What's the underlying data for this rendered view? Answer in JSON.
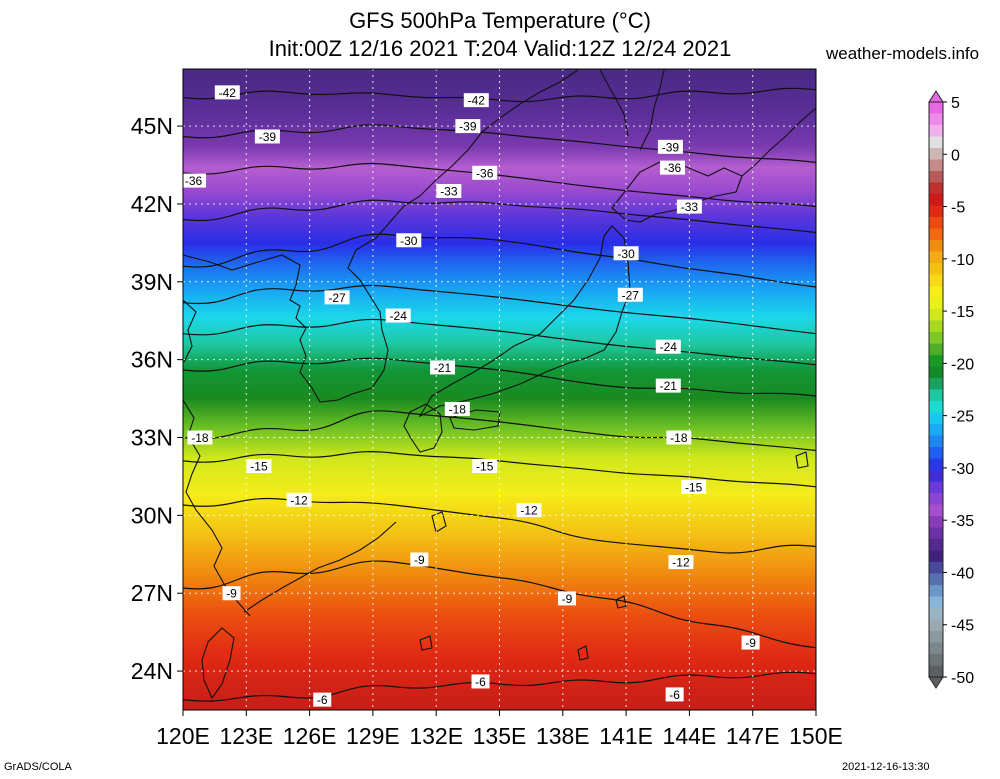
{
  "header": {
    "title_line1": "GFS 500hPa Temperature (°C)",
    "title_line2": "Init:00Z 12/16 2021 T:204 Valid:12Z 12/24 2021",
    "site": "weather-models.info"
  },
  "footer": {
    "left": "GrADS/COLA",
    "right": "2021-12-16-13:30"
  },
  "map": {
    "lon_range": [
      120,
      150
    ],
    "lat_range": [
      22.5,
      47.2
    ],
    "lon_labels": [
      "120E",
      "123E",
      "126E",
      "129E",
      "132E",
      "135E",
      "138E",
      "141E",
      "144E",
      "147E",
      "150E"
    ],
    "lon_values": [
      120,
      123,
      126,
      129,
      132,
      135,
      138,
      141,
      144,
      147,
      150
    ],
    "lat_labels": [
      "45N",
      "42N",
      "39N",
      "36N",
      "33N",
      "30N",
      "27N",
      "24N"
    ],
    "lat_values": [
      45,
      42,
      39,
      36,
      33,
      30,
      27,
      24
    ],
    "field_color_stops": [
      {
        "lat": 47.0,
        "color": "#4b2a86"
      },
      {
        "lat": 45.5,
        "color": "#5a2e98"
      },
      {
        "lat": 44.2,
        "color": "#7a3ab0"
      },
      {
        "lat": 43.4,
        "color": "#b55ed0"
      },
      {
        "lat": 42.5,
        "color": "#9a4ad0"
      },
      {
        "lat": 41.5,
        "color": "#5a36d8"
      },
      {
        "lat": 40.5,
        "color": "#2a2ee8"
      },
      {
        "lat": 39.6,
        "color": "#1e6ef0"
      },
      {
        "lat": 38.6,
        "color": "#18aaf4"
      },
      {
        "lat": 37.6,
        "color": "#1cd8e8"
      },
      {
        "lat": 36.6,
        "color": "#1ec8a0"
      },
      {
        "lat": 35.6,
        "color": "#129638"
      },
      {
        "lat": 34.5,
        "color": "#1a8a20"
      },
      {
        "lat": 33.4,
        "color": "#6cc024"
      },
      {
        "lat": 32.2,
        "color": "#d0e81c"
      },
      {
        "lat": 30.8,
        "color": "#f5ec18"
      },
      {
        "lat": 29.3,
        "color": "#f4c214"
      },
      {
        "lat": 27.8,
        "color": "#f08c10"
      },
      {
        "lat": 26.2,
        "color": "#ec5010"
      },
      {
        "lat": 24.6,
        "color": "#e02a14"
      },
      {
        "lat": 22.6,
        "color": "#c81e18"
      }
    ],
    "contours": [
      {
        "label": "-42",
        "lats": [
          46.1,
          46.3,
          46.2,
          46.0,
          46.1,
          46.3,
          46.4
        ]
      },
      {
        "label": "-39",
        "lats": [
          44.6,
          44.8,
          45.0,
          44.7,
          44.3,
          43.9,
          43.6
        ]
      },
      {
        "label": "-36",
        "lats": [
          43.2,
          43.4,
          43.5,
          43.1,
          42.6,
          42.2,
          41.9
        ]
      },
      {
        "label": "-33",
        "lats": [
          41.4,
          41.8,
          42.1,
          42.0,
          41.7,
          41.3,
          40.9
        ]
      },
      {
        "label": "-30",
        "lats": [
          39.6,
          40.2,
          40.8,
          40.6,
          40.0,
          39.4,
          38.8
        ]
      },
      {
        "label": "-27",
        "lats": [
          38.2,
          38.7,
          38.8,
          38.4,
          37.9,
          37.5,
          37.0
        ]
      },
      {
        "label": "-24",
        "lats": [
          37.0,
          37.3,
          37.5,
          37.1,
          36.6,
          36.2,
          35.8
        ]
      },
      {
        "label": "-21",
        "lats": [
          35.6,
          35.9,
          36.0,
          35.6,
          35.0,
          34.8,
          34.6
        ]
      },
      {
        "label": "-18",
        "lats": [
          33.0,
          33.3,
          34.0,
          33.6,
          33.1,
          32.9,
          32.5
        ]
      },
      {
        "label": "-15",
        "lats": [
          32.1,
          32.3,
          32.4,
          32.1,
          31.7,
          31.4,
          31.1
        ]
      },
      {
        "label": "-12",
        "lats": [
          30.4,
          30.6,
          30.4,
          29.9,
          29.0,
          28.6,
          28.8
        ]
      },
      {
        "label": "-9",
        "lats": [
          27.2,
          27.8,
          28.2,
          27.6,
          26.8,
          25.8,
          24.9
        ]
      },
      {
        "label": "-6",
        "lats": [
          22.9,
          23.0,
          23.4,
          23.5,
          23.6,
          23.8,
          23.9
        ]
      }
    ],
    "contour_labels": [
      {
        "text": "-42",
        "lon": 122.1,
        "lat": 46.3
      },
      {
        "text": "-42",
        "lon": 133.9,
        "lat": 46.0
      },
      {
        "text": "-39",
        "lon": 124.0,
        "lat": 44.6
      },
      {
        "text": "-39",
        "lon": 133.5,
        "lat": 45.0
      },
      {
        "text": "-39",
        "lon": 143.1,
        "lat": 44.2
      },
      {
        "text": "-36",
        "lon": 120.5,
        "lat": 42.9
      },
      {
        "text": "-36",
        "lon": 134.3,
        "lat": 43.2
      },
      {
        "text": "-36",
        "lon": 143.2,
        "lat": 43.4
      },
      {
        "text": "-33",
        "lon": 132.6,
        "lat": 42.5
      },
      {
        "text": "-33",
        "lon": 144.0,
        "lat": 41.9
      },
      {
        "text": "-30",
        "lon": 130.7,
        "lat": 40.6
      },
      {
        "text": "-30",
        "lon": 141.0,
        "lat": 40.1
      },
      {
        "text": "-27",
        "lon": 127.3,
        "lat": 38.4
      },
      {
        "text": "-27",
        "lon": 141.2,
        "lat": 38.5
      },
      {
        "text": "-24",
        "lon": 130.2,
        "lat": 37.7
      },
      {
        "text": "-24",
        "lon": 143.0,
        "lat": 36.5
      },
      {
        "text": "-21",
        "lon": 132.3,
        "lat": 35.7
      },
      {
        "text": "-21",
        "lon": 143.0,
        "lat": 35.0
      },
      {
        "text": "-18",
        "lon": 120.8,
        "lat": 33.0
      },
      {
        "text": "-18",
        "lon": 133.0,
        "lat": 34.1
      },
      {
        "text": "-18",
        "lon": 143.5,
        "lat": 33.0
      },
      {
        "text": "-15",
        "lon": 123.6,
        "lat": 31.9
      },
      {
        "text": "-15",
        "lon": 134.3,
        "lat": 31.9
      },
      {
        "text": "-15",
        "lon": 144.2,
        "lat": 31.1
      },
      {
        "text": "-12",
        "lon": 125.5,
        "lat": 30.6
      },
      {
        "text": "-12",
        "lon": 136.4,
        "lat": 30.2
      },
      {
        "text": "-12",
        "lon": 143.6,
        "lat": 28.2
      },
      {
        "text": "-9",
        "lon": 122.3,
        "lat": 27.0
      },
      {
        "text": "-9",
        "lon": 131.2,
        "lat": 28.3
      },
      {
        "text": "-9",
        "lon": 138.2,
        "lat": 26.8
      },
      {
        "text": "-9",
        "lon": 146.9,
        "lat": 25.1
      },
      {
        "text": "-6",
        "lon": 134.1,
        "lat": 23.6
      },
      {
        "text": "-6",
        "lon": 143.3,
        "lat": 23.1
      },
      {
        "text": "-6",
        "lon": 126.6,
        "lat": 22.9
      }
    ],
    "coast_color": "#111111",
    "grid_color": "#ffffff"
  },
  "colorbar": {
    "min": -50,
    "max": 5,
    "tick_labels": [
      "5",
      "0",
      "-5",
      "-10",
      "-15",
      "-20",
      "-25",
      "-30",
      "-35",
      "-40",
      "-45",
      "-50"
    ],
    "tick_values": [
      5,
      0,
      -5,
      -10,
      -15,
      -20,
      -25,
      -30,
      -35,
      -40,
      -45,
      -50
    ],
    "colors": [
      "#e866e4",
      "#ee8ae8",
      "#f2b0ee",
      "#e0e0e0",
      "#cfb6b6",
      "#c48a8a",
      "#b85a5a",
      "#c03030",
      "#d01818",
      "#e02a14",
      "#ec4a10",
      "#f06810",
      "#f08c10",
      "#f4aa14",
      "#f4c214",
      "#f6d816",
      "#f5ec18",
      "#e8f018",
      "#d0e81c",
      "#a8d820",
      "#80c828",
      "#4eb028",
      "#1a9a24",
      "#128a28",
      "#1aa060",
      "#1ec8a0",
      "#1cdcd0",
      "#18c8f0",
      "#18a8f4",
      "#1e88f0",
      "#1e60f0",
      "#2a38e8",
      "#3e2ed8",
      "#6a3ad8",
      "#8a46d0",
      "#a450cc",
      "#8a3cb8",
      "#6a30a4",
      "#542a90",
      "#40227c",
      "#46489a",
      "#5a6eb4",
      "#6c96c8",
      "#88b4d8",
      "#9ab4c4",
      "#9aa8b0",
      "#8c9aa0",
      "#7c888e",
      "#6c7478",
      "#5a6064"
    ]
  }
}
